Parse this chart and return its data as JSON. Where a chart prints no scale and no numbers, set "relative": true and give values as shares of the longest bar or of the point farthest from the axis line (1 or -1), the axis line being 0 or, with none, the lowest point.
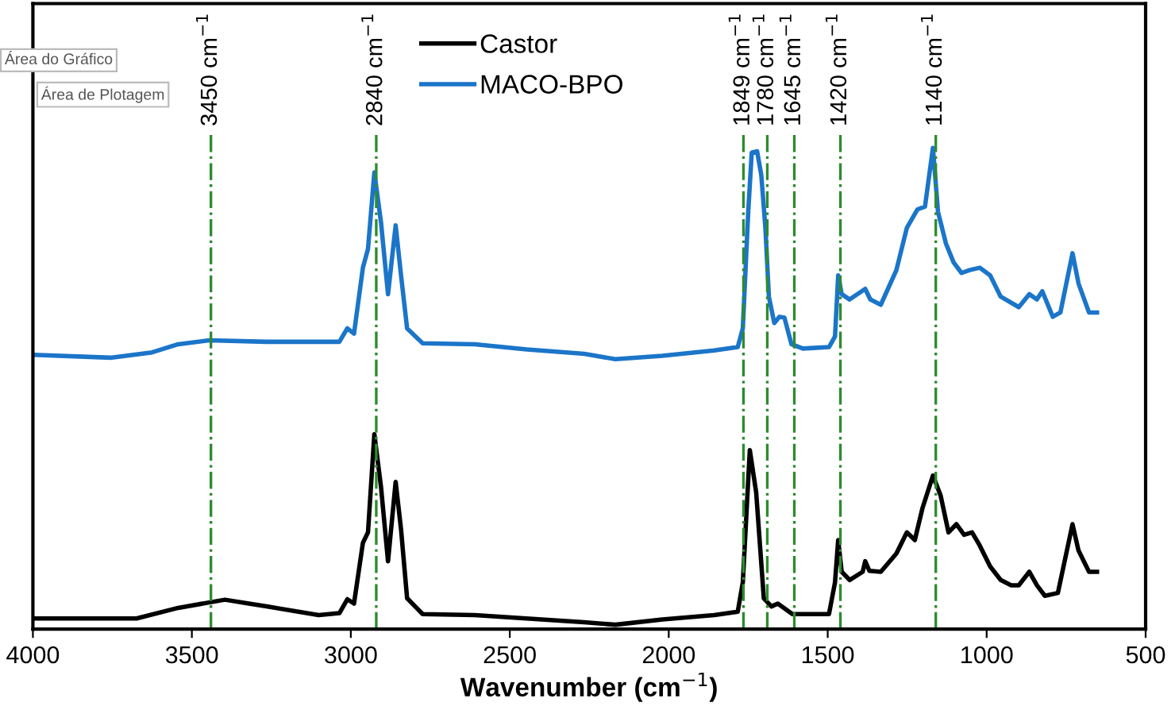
{
  "chart_data": {
    "type": "line",
    "relative": true,
    "xlabel": "Wavenumber (cm$^{−1}$)",
    "xlim": [
      4000,
      500
    ],
    "xticks": [
      4000,
      3500,
      3000,
      2500,
      2000,
      1500,
      1000,
      500
    ],
    "legend": "top",
    "grid": false,
    "annotations": [
      "Área do Gráfico",
      "Área de Plotagem"
    ],
    "ref_lines": [
      {
        "axis": "x",
        "value": 3440,
        "label": "3450 cm$^{−1}$",
        "color": "#2e8b2e",
        "line_style": "dashdot"
      },
      {
        "axis": "x",
        "value": 2920,
        "label": "2840 cm$^{−1}$",
        "color": "#2e8b2e",
        "line_style": "dashdot"
      },
      {
        "axis": "x",
        "value": 1765,
        "label": "1849 cm$^{−1}$",
        "color": "#2e8b2e",
        "line_style": "dashdot"
      },
      {
        "axis": "x",
        "value": 1690,
        "label": "1780 cm$^{−1}$",
        "color": "#2e8b2e",
        "line_style": "dashdot"
      },
      {
        "axis": "x",
        "value": 1605,
        "label": "1645 cm$^{−1}$",
        "color": "#2e8b2e",
        "line_style": "dashdot"
      },
      {
        "axis": "x",
        "value": 1460,
        "label": "1420 cm$^{−1}$",
        "color": "#2e8b2e",
        "line_style": "dashdot"
      },
      {
        "axis": "x",
        "value": 1160,
        "label": "1140 cm$^{−1}$",
        "color": "#2e8b2e",
        "line_style": "dashdot"
      }
    ],
    "series": [
      {
        "name": "Castor",
        "color": "#000000",
        "x": [
          4000,
          3674,
          3543,
          3396,
          3265,
          3101,
          3036,
          3011,
          2990,
          2962,
          2946,
          2926,
          2905,
          2883,
          2859,
          2842,
          2823,
          2774,
          2610,
          2266,
          2168,
          2020,
          1857,
          1783,
          1767,
          1745,
          1725,
          1701,
          1677,
          1657,
          1611,
          1496,
          1477,
          1467,
          1456,
          1431,
          1390,
          1382,
          1369,
          1333,
          1284,
          1251,
          1226,
          1202,
          1169,
          1145,
          1120,
          1095,
          1071,
          1046,
          1022,
          989,
          956,
          923,
          899,
          866,
          842,
          817,
          776,
          730,
          711,
          678,
          653
        ],
        "values": [
          0.022,
          0.022,
          0.044,
          0.061,
          0.047,
          0.029,
          0.033,
          0.062,
          0.053,
          0.179,
          0.201,
          0.405,
          0.295,
          0.141,
          0.306,
          0.207,
          0.064,
          0.031,
          0.029,
          0.014,
          0.009,
          0.02,
          0.029,
          0.036,
          0.097,
          0.372,
          0.284,
          0.064,
          0.047,
          0.053,
          0.031,
          0.031,
          0.097,
          0.185,
          0.119,
          0.102,
          0.119,
          0.141,
          0.121,
          0.119,
          0.157,
          0.201,
          0.185,
          0.251,
          0.319,
          0.278,
          0.201,
          0.218,
          0.196,
          0.201,
          0.174,
          0.13,
          0.102,
          0.091,
          0.091,
          0.119,
          0.091,
          0.069,
          0.075,
          0.218,
          0.163,
          0.119,
          0.119
        ]
      },
      {
        "name": "MACO-BPO",
        "color": "#1b75c9",
        "x": [
          4000,
          3756,
          3625,
          3543,
          3445,
          3265,
          3036,
          3011,
          2990,
          2962,
          2946,
          2926,
          2905,
          2883,
          2859,
          2842,
          2823,
          2774,
          2610,
          2446,
          2266,
          2168,
          2020,
          1857,
          1783,
          1767,
          1750,
          1739,
          1722,
          1709,
          1696,
          1685,
          1668,
          1652,
          1636,
          1614,
          1578,
          1496,
          1477,
          1467,
          1456,
          1431,
          1382,
          1366,
          1333,
          1284,
          1251,
          1218,
          1194,
          1169,
          1153,
          1128,
          1104,
          1079,
          1054,
          1022,
          989,
          956,
          899,
          866,
          842,
          825,
          792,
          768,
          730,
          711,
          678,
          653
        ],
        "values": [
          0.57,
          0.564,
          0.575,
          0.592,
          0.6,
          0.597,
          0.597,
          0.625,
          0.614,
          0.751,
          0.79,
          0.949,
          0.845,
          0.696,
          0.839,
          0.735,
          0.625,
          0.594,
          0.592,
          0.581,
          0.572,
          0.561,
          0.568,
          0.579,
          0.586,
          0.625,
          0.867,
          0.99,
          0.993,
          0.944,
          0.834,
          0.691,
          0.636,
          0.649,
          0.647,
          0.592,
          0.583,
          0.586,
          0.608,
          0.735,
          0.696,
          0.685,
          0.707,
          0.685,
          0.674,
          0.746,
          0.834,
          0.872,
          0.878,
          1.0,
          0.867,
          0.801,
          0.762,
          0.74,
          0.746,
          0.751,
          0.735,
          0.691,
          0.669,
          0.696,
          0.685,
          0.702,
          0.649,
          0.658,
          0.781,
          0.718,
          0.658,
          0.658
        ]
      }
    ]
  }
}
